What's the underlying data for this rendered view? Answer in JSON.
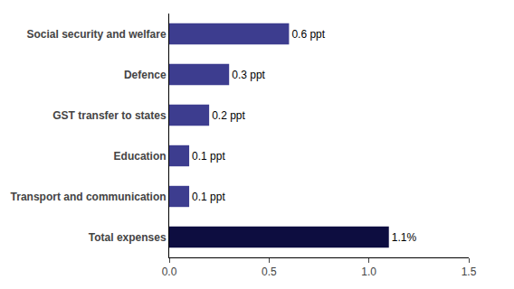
{
  "chart_data": {
    "type": "bar",
    "orientation": "horizontal",
    "categories": [
      "Total expenses",
      "Transport and communication",
      "Education",
      "GST transfer to states",
      "Defence",
      "Social security and welfare"
    ],
    "values": [
      1.1,
      0.1,
      0.1,
      0.2,
      0.3,
      0.6
    ],
    "value_labels": [
      "1.1%",
      "0.1 ppt",
      "0.1 ppt",
      "0.2 ppt",
      "0.3 ppt",
      "0.6 ppt"
    ],
    "data_labels": true,
    "colors": [
      "#0d0d40",
      "#3d3d8f",
      "#3d3d8f",
      "#3d3d8f",
      "#3d3d8f",
      "#3d3d8f"
    ],
    "xlim": [
      0,
      1.5
    ],
    "xticks": [
      {
        "value": 0.0,
        "label": "0.0"
      },
      0.5,
      {
        "value": 1.0,
        "label": "1.0"
      },
      1.5
    ],
    "grid": false
  }
}
